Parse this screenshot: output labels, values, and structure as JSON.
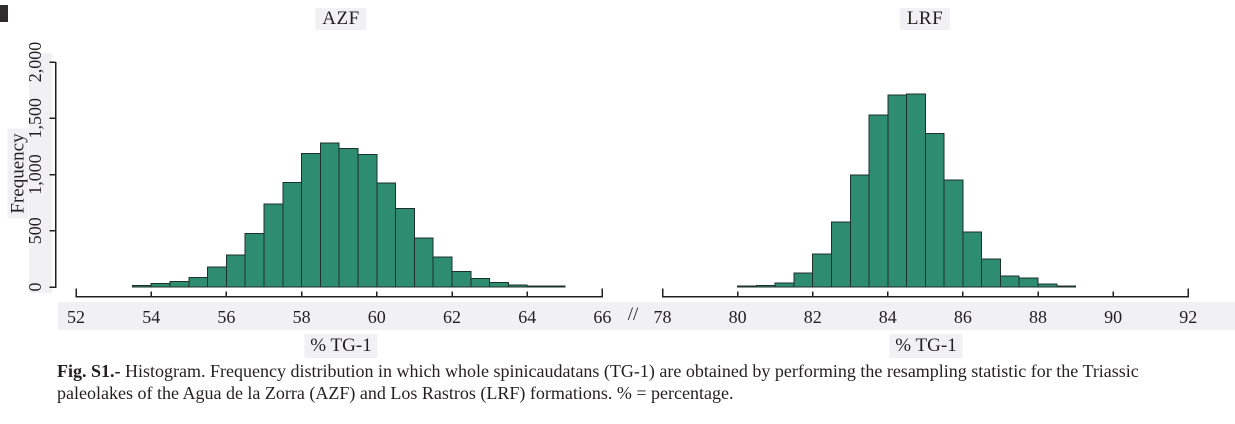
{
  "colors": {
    "bar_fill": "#2e8c70",
    "bar_stroke": "#1c3129",
    "axis": "#231f20",
    "text": "#231f20",
    "highlight_bg": "#f1f1f3"
  },
  "axes": {
    "y_label": "Frequency",
    "x_label": "% TG-1",
    "break_symbol": "//"
  },
  "caption": {
    "label": "Fig. S1.-",
    "text": " Histogram. Frequency distribution in which whole spinicaudatans (TG-1) are obtained by performing the resampling statistic for the Triassic paleolakes of the Agua de la Zorra (AZF) and Los Rastros (LRF) formations. % = percentage."
  },
  "chart_data": [
    {
      "type": "bar",
      "subtype": "histogram",
      "title": "AZF",
      "xlabel": "% TG-1",
      "ylabel": "Frequency",
      "bin_start": 53.5,
      "bin_width": 0.5,
      "counts": [
        15,
        30,
        50,
        85,
        180,
        285,
        475,
        740,
        930,
        1185,
        1280,
        1230,
        1180,
        925,
        700,
        435,
        265,
        140,
        75,
        40,
        20,
        10,
        5
      ],
      "xlim": [
        52,
        66
      ],
      "x_ticks": [
        52,
        54,
        56,
        58,
        60,
        62,
        64,
        66
      ],
      "x_tick_labels": [
        "52",
        "54",
        "56",
        "58",
        "60",
        "62",
        "64",
        "66"
      ],
      "ylim": [
        0,
        2000
      ],
      "y_ticks": [
        0,
        500,
        1000,
        1500,
        2000
      ],
      "y_tick_labels": [
        "0",
        "500",
        "1,000",
        "1,500",
        "2,000"
      ],
      "grid": false,
      "legend": "none"
    },
    {
      "type": "bar",
      "subtype": "histogram",
      "title": "LRF",
      "xlabel": "% TG-1",
      "ylabel": "Frequency",
      "bin_start": 80.0,
      "bin_width": 0.5,
      "counts": [
        8,
        12,
        35,
        125,
        295,
        580,
        995,
        1530,
        1705,
        1715,
        1365,
        950,
        490,
        250,
        100,
        80,
        25,
        10
      ],
      "xlim": [
        78,
        92
      ],
      "x_ticks": [
        78,
        80,
        82,
        84,
        86,
        88,
        90,
        92
      ],
      "x_tick_labels": [
        "78",
        "80",
        "82",
        "84",
        "86",
        "88",
        "90",
        "92"
      ],
      "ylim": [
        0,
        2000
      ],
      "y_ticks": [
        0,
        500,
        1000,
        1500,
        2000
      ],
      "y_tick_labels": [
        "0",
        "500",
        "1,000",
        "1,500",
        "2,000"
      ],
      "grid": false,
      "legend": "none"
    }
  ]
}
